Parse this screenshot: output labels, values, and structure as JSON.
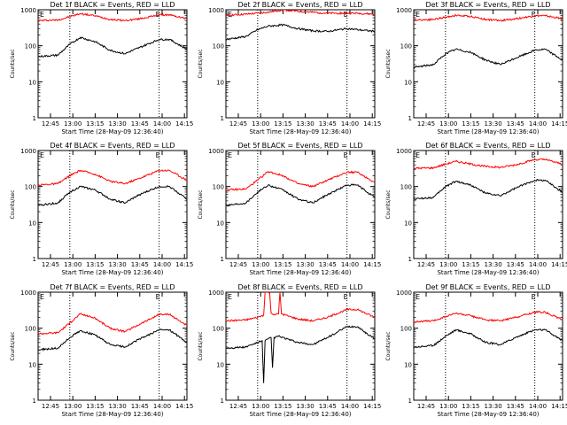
{
  "chart_data": [
    {
      "type": "line",
      "title": "Det 1f  BLACK = Events, RED = LLD",
      "xlabel": "Start Time (28-May-09 12:36:40)",
      "ylabel": "Counts/sec",
      "xticks": [
        "12:45",
        "13:00",
        "13:15",
        "13:30",
        "13:45",
        "14:00",
        "14:15"
      ],
      "yticks": [
        "1",
        "10",
        "100",
        "1000"
      ],
      "ylim": [
        1,
        1000
      ],
      "xlim": [
        "12:36:40",
        "14:16:40"
      ],
      "yscale": "log",
      "marker_times": [
        "12:58",
        "13:58"
      ],
      "marker_label": "E",
      "series": [
        {
          "color": "#ff0000",
          "x": [
            "12:36:40",
            "12:50",
            "12:58",
            "13:05",
            "13:15",
            "13:25",
            "13:35",
            "13:45",
            "13:58",
            "14:05",
            "14:16:40"
          ],
          "y": [
            500,
            520,
            640,
            780,
            680,
            540,
            500,
            560,
            720,
            720,
            560
          ]
        },
        {
          "color": "#000000",
          "x": [
            "12:36:40",
            "12:50",
            "12:58",
            "13:05",
            "13:15",
            "13:25",
            "13:35",
            "13:45",
            "13:58",
            "14:05",
            "14:16:40"
          ],
          "y": [
            50,
            55,
            110,
            170,
            130,
            75,
            60,
            90,
            150,
            150,
            80
          ]
        }
      ]
    },
    {
      "type": "line",
      "title": "Det 2f  BLACK = Events, RED = LLD",
      "xlabel": "Start Time (28-May-09 12:36:40)",
      "ylabel": "Counts/sec",
      "xticks": [
        "12:45",
        "13:00",
        "13:15",
        "13:30",
        "13:45",
        "14:00",
        "14:15"
      ],
      "yticks": [
        "1",
        "10",
        "100",
        "1000"
      ],
      "ylim": [
        1,
        1000
      ],
      "xlim": [
        "12:36:40",
        "14:16:40"
      ],
      "yscale": "log",
      "marker_times": [
        "12:58",
        "13:58"
      ],
      "marker_label": "E",
      "series": [
        {
          "color": "#ff0000",
          "x": [
            "12:36:40",
            "12:50",
            "12:58",
            "13:05",
            "13:15",
            "13:25",
            "13:35",
            "13:45",
            "13:58",
            "14:05",
            "14:16:40"
          ],
          "y": [
            700,
            750,
            800,
            850,
            1000,
            900,
            850,
            800,
            800,
            800,
            750
          ]
        },
        {
          "color": "#000000",
          "x": [
            "12:36:40",
            "12:50",
            "12:58",
            "13:05",
            "13:15",
            "13:25",
            "13:35",
            "13:45",
            "13:58",
            "14:05",
            "14:16:40"
          ],
          "y": [
            150,
            180,
            280,
            350,
            380,
            300,
            260,
            250,
            300,
            280,
            250
          ]
        }
      ]
    },
    {
      "type": "line",
      "title": "Det 3f  BLACK = Events, RED = LLD",
      "xlabel": "Start Time (28-May-09 12:36:40)",
      "ylabel": "Counts/sec",
      "xticks": [
        "12:45",
        "13:00",
        "13:15",
        "13:30",
        "13:45",
        "14:00",
        "14:15"
      ],
      "yticks": [
        "1",
        "10",
        "100",
        "1000"
      ],
      "ylim": [
        1,
        1000
      ],
      "xlim": [
        "12:36:40",
        "14:16:40"
      ],
      "yscale": "log",
      "marker_times": [
        "12:58",
        "13:58"
      ],
      "marker_label": "E",
      "series": [
        {
          "color": "#ff0000",
          "x": [
            "12:36:40",
            "12:50",
            "12:58",
            "13:05",
            "13:15",
            "13:25",
            "13:35",
            "13:45",
            "13:58",
            "14:05",
            "14:16:40"
          ],
          "y": [
            520,
            540,
            620,
            700,
            650,
            540,
            500,
            560,
            680,
            680,
            560
          ]
        },
        {
          "color": "#000000",
          "x": [
            "12:36:40",
            "12:50",
            "12:58",
            "13:05",
            "13:15",
            "13:25",
            "13:35",
            "13:45",
            "13:58",
            "14:05",
            "14:16:40"
          ],
          "y": [
            25,
            30,
            60,
            80,
            65,
            40,
            30,
            45,
            75,
            80,
            40
          ]
        }
      ]
    },
    {
      "type": "line",
      "title": "Det 4f  BLACK = Events, RED = LLD",
      "xlabel": "Start Time (28-May-09 12:36:40)",
      "ylabel": "Counts/sec",
      "xticks": [
        "12:45",
        "13:00",
        "13:15",
        "13:30",
        "13:45",
        "14:00",
        "14:15"
      ],
      "yticks": [
        "1",
        "10",
        "100",
        "1000"
      ],
      "ylim": [
        1,
        1000
      ],
      "xlim": [
        "12:36:40",
        "14:16:40"
      ],
      "yscale": "log",
      "marker_times": [
        "12:58",
        "13:58"
      ],
      "marker_label": "E",
      "series": [
        {
          "color": "#ff0000",
          "x": [
            "12:36:40",
            "12:50",
            "12:58",
            "13:05",
            "13:15",
            "13:25",
            "13:35",
            "13:45",
            "13:58",
            "14:05",
            "14:16:40"
          ],
          "y": [
            110,
            120,
            200,
            280,
            220,
            140,
            120,
            170,
            280,
            280,
            150
          ]
        },
        {
          "color": "#000000",
          "x": [
            "12:36:40",
            "12:50",
            "12:58",
            "13:05",
            "13:15",
            "13:25",
            "13:35",
            "13:45",
            "13:58",
            "14:05",
            "14:16:40"
          ],
          "y": [
            30,
            35,
            70,
            100,
            80,
            45,
            35,
            60,
            100,
            100,
            45
          ]
        }
      ]
    },
    {
      "type": "line",
      "title": "Det 5f  BLACK = Events, RED = LLD",
      "xlabel": "Start Time (28-May-09 12:36:40)",
      "ylabel": "Counts/sec",
      "xticks": [
        "12:45",
        "13:00",
        "13:15",
        "13:30",
        "13:45",
        "14:00",
        "14:15"
      ],
      "yticks": [
        "1",
        "10",
        "100",
        "1000"
      ],
      "ylim": [
        1,
        1000
      ],
      "xlim": [
        "12:36:40",
        "14:16:40"
      ],
      "yscale": "log",
      "marker_times": [
        "12:58",
        "13:58"
      ],
      "marker_label": "E",
      "series": [
        {
          "color": "#ff0000",
          "x": [
            "12:36:40",
            "12:50",
            "12:58",
            "13:05",
            "13:15",
            "13:25",
            "13:35",
            "13:45",
            "13:58",
            "14:05",
            "14:16:40"
          ],
          "y": [
            80,
            85,
            150,
            260,
            200,
            120,
            100,
            150,
            250,
            250,
            130
          ]
        },
        {
          "color": "#000000",
          "x": [
            "12:36:40",
            "12:50",
            "12:58",
            "13:05",
            "13:15",
            "13:25",
            "13:35",
            "13:45",
            "13:58",
            "14:05",
            "14:16:40"
          ],
          "y": [
            30,
            35,
            70,
            110,
            80,
            45,
            35,
            60,
            110,
            110,
            50
          ]
        }
      ]
    },
    {
      "type": "line",
      "title": "Det 6f  BLACK = Events, RED = LLD",
      "xlabel": "Start Time (28-May-09 12:36:40)",
      "ylabel": "Counts/sec",
      "xticks": [
        "12:45",
        "13:00",
        "13:15",
        "13:30",
        "13:45",
        "14:00",
        "14:15"
      ],
      "yticks": [
        "1",
        "10",
        "100",
        "1000"
      ],
      "ylim": [
        1,
        1000
      ],
      "xlim": [
        "12:36:40",
        "14:16:40"
      ],
      "yscale": "log",
      "marker_times": [
        "12:58",
        "13:58"
      ],
      "marker_label": "E",
      "series": [
        {
          "color": "#ff0000",
          "x": [
            "12:36:40",
            "12:50",
            "12:58",
            "13:05",
            "13:15",
            "13:25",
            "13:35",
            "13:45",
            "13:58",
            "14:05",
            "14:16:40"
          ],
          "y": [
            320,
            330,
            420,
            500,
            420,
            360,
            340,
            400,
            560,
            560,
            420
          ]
        },
        {
          "color": "#000000",
          "x": [
            "12:36:40",
            "12:50",
            "12:58",
            "13:05",
            "13:15",
            "13:25",
            "13:35",
            "13:45",
            "13:58",
            "14:05",
            "14:16:40"
          ],
          "y": [
            45,
            50,
            100,
            140,
            110,
            65,
            55,
            90,
            150,
            150,
            70
          ]
        }
      ]
    },
    {
      "type": "line",
      "title": "Det 7f  BLACK = Events, RED = LLD",
      "xlabel": "Start Time (28-May-09 12:36:40)",
      "ylabel": "Counts/sec",
      "xticks": [
        "12:45",
        "13:00",
        "13:15",
        "13:30",
        "13:45",
        "14:00",
        "14:15"
      ],
      "yticks": [
        "1",
        "10",
        "100",
        "1000"
      ],
      "ylim": [
        1,
        1000
      ],
      "xlim": [
        "12:36:40",
        "14:16:40"
      ],
      "yscale": "log",
      "marker_times": [
        "12:58",
        "13:58"
      ],
      "marker_label": "E",
      "series": [
        {
          "color": "#ff0000",
          "x": [
            "12:36:40",
            "12:50",
            "12:58",
            "13:05",
            "13:15",
            "13:25",
            "13:35",
            "13:45",
            "13:58",
            "14:05",
            "14:16:40"
          ],
          "y": [
            70,
            75,
            140,
            250,
            190,
            100,
            80,
            130,
            240,
            240,
            120
          ]
        },
        {
          "color": "#000000",
          "x": [
            "12:36:40",
            "12:50",
            "12:58",
            "13:05",
            "13:15",
            "13:25",
            "13:35",
            "13:45",
            "13:58",
            "14:05",
            "14:16:40"
          ],
          "y": [
            25,
            28,
            55,
            85,
            65,
            35,
            30,
            50,
            90,
            90,
            40
          ]
        }
      ]
    },
    {
      "type": "line",
      "title": "Det 8f  BLACK = Events, RED = LLD",
      "xlabel": "Start Time (28-May-09 12:36:40)",
      "ylabel": "Counts/sec",
      "xticks": [
        "12:45",
        "13:00",
        "13:15",
        "13:30",
        "13:45",
        "14:00",
        "14:15"
      ],
      "yticks": [
        "1",
        "10",
        "100",
        "1000"
      ],
      "ylim": [
        1,
        1000
      ],
      "xlim": [
        "12:36:40",
        "14:16:40"
      ],
      "yscale": "log",
      "marker_times": [
        "12:58",
        "13:58"
      ],
      "marker_label": "E",
      "series": [
        {
          "color": "#ff0000",
          "x": [
            "12:36:40",
            "12:50",
            "12:58",
            "13:02",
            "13:03",
            "13:06",
            "13:07",
            "13:10",
            "13:12",
            "13:13",
            "13:14",
            "13:25",
            "13:35",
            "13:45",
            "13:58",
            "14:05",
            "14:16:40"
          ],
          "y": [
            160,
            170,
            200,
            230,
            1000,
            1000,
            260,
            240,
            250,
            1000,
            250,
            180,
            160,
            200,
            330,
            330,
            200
          ]
        },
        {
          "color": "#000000",
          "x": [
            "12:36:40",
            "12:50",
            "12:58",
            "13:01",
            "13:02",
            "13:03",
            "13:05",
            "13:07",
            "13:08",
            "13:09",
            "13:12",
            "13:25",
            "13:35",
            "13:45",
            "13:58",
            "14:05",
            "14:16:40"
          ],
          "y": [
            28,
            30,
            40,
            45,
            3,
            45,
            50,
            55,
            8,
            55,
            60,
            40,
            35,
            55,
            110,
            110,
            50
          ]
        }
      ]
    },
    {
      "type": "line",
      "title": "Det 9f  BLACK = Events, RED = LLD",
      "xlabel": "Start Time (28-May-09 12:36:40)",
      "ylabel": "Counts/sec",
      "xticks": [
        "12:45",
        "13:00",
        "13:15",
        "13:30",
        "13:45",
        "14:00",
        "14:15"
      ],
      "yticks": [
        "1",
        "10",
        "100",
        "1000"
      ],
      "ylim": [
        1,
        1000
      ],
      "xlim": [
        "12:36:40",
        "14:16:40"
      ],
      "yscale": "log",
      "marker_times": [
        "12:58",
        "13:58"
      ],
      "marker_label": "E",
      "series": [
        {
          "color": "#ff0000",
          "x": [
            "12:36:40",
            "12:50",
            "12:58",
            "13:05",
            "13:15",
            "13:25",
            "13:35",
            "13:45",
            "13:58",
            "14:05",
            "14:16:40"
          ],
          "y": [
            150,
            160,
            210,
            260,
            220,
            170,
            160,
            200,
            280,
            280,
            170
          ]
        },
        {
          "color": "#000000",
          "x": [
            "12:36:40",
            "12:50",
            "12:58",
            "13:05",
            "13:15",
            "13:25",
            "13:35",
            "13:45",
            "13:58",
            "14:05",
            "14:16:40"
          ],
          "y": [
            30,
            33,
            60,
            90,
            70,
            40,
            35,
            55,
            90,
            90,
            45
          ]
        }
      ]
    }
  ]
}
